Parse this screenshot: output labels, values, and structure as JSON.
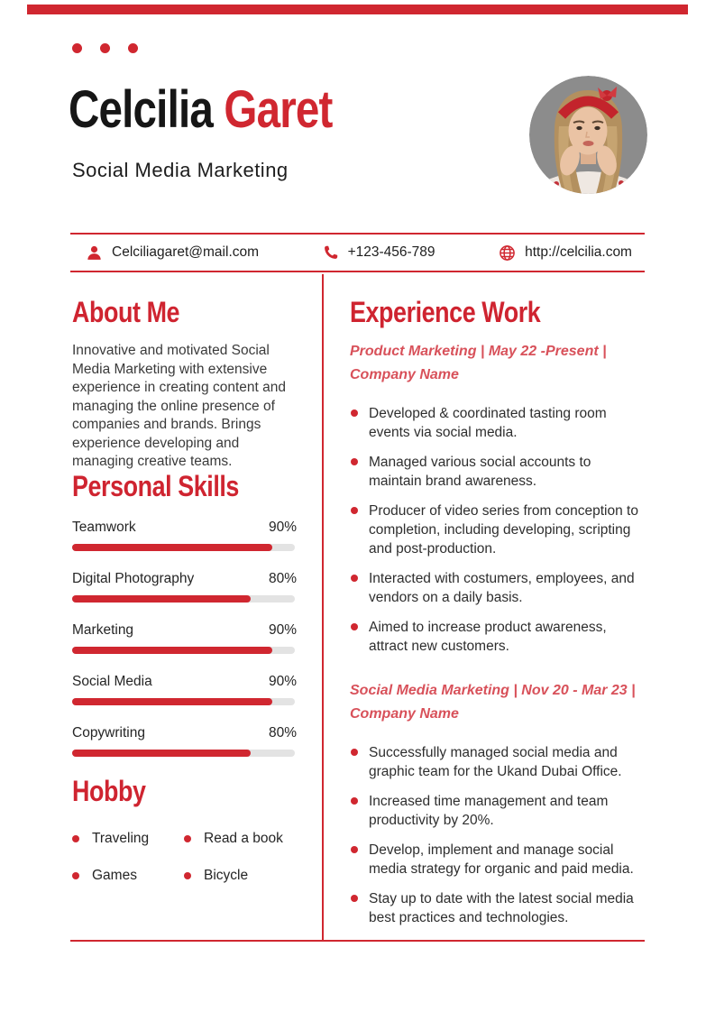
{
  "colors": {
    "accent": "#d02730",
    "heading_red": "#cf2430",
    "subheading_red": "#d8515a",
    "bar_track": "#e3e3e3",
    "name_black": "#161616",
    "photo_background": "#8c8c8c"
  },
  "header": {
    "first_name": "Celcilia",
    "last_name": "Garet",
    "subtitle": "Social Media Marketing"
  },
  "contact": {
    "email": "Celciliagaret@mail.com",
    "phone": "+123-456-789",
    "website": "http://celcilia.com",
    "icons": [
      "person-icon",
      "phone-icon",
      "globe-icon"
    ]
  },
  "about": {
    "title": "About Me",
    "text": "Innovative and motivated Social Media Marketing with extensive experience in creating content and managing the online presence of companies and brands. Brings experience developing and managing creative teams."
  },
  "skills": {
    "title": "Personal Skills",
    "items": [
      {
        "label": "Teamwork",
        "percent": "90%",
        "value": 90
      },
      {
        "label": "Digital Photography",
        "percent": "80%",
        "value": 80
      },
      {
        "label": "Marketing",
        "percent": "90%",
        "value": 90
      },
      {
        "label": "Social Media",
        "percent": "90%",
        "value": 90
      },
      {
        "label": "Copywriting",
        "percent": "80%",
        "value": 80
      }
    ]
  },
  "hobby": {
    "title": "Hobby",
    "items": [
      "Traveling",
      "Read a book",
      "Games",
      "Bicycle"
    ]
  },
  "experience": {
    "title": "Experience Work",
    "jobs": [
      {
        "heading": "Product Marketing | May 22 -Present | Company Name",
        "bullets": [
          "Developed & coordinated tasting room events via social media.",
          "Managed various social accounts to maintain brand awareness.",
          "Producer of video series from conception to completion, including developing, scripting and post-production.",
          "Interacted with costumers, employees, and vendors on a daily basis.",
          "Aimed to increase product awareness, attract new customers."
        ]
      },
      {
        "heading": "Social Media Marketing | Nov 20 - Mar 23 | Company Name",
        "bullets": [
          "Successfully managed social media and graphic team for the Ukand Dubai Office.",
          "Increased time management and team productivity by 20%.",
          "Develop, implement and manage social media strategy for organic and paid media.",
          "Stay up to date with the latest social media best practices and technologies."
        ]
      }
    ]
  }
}
